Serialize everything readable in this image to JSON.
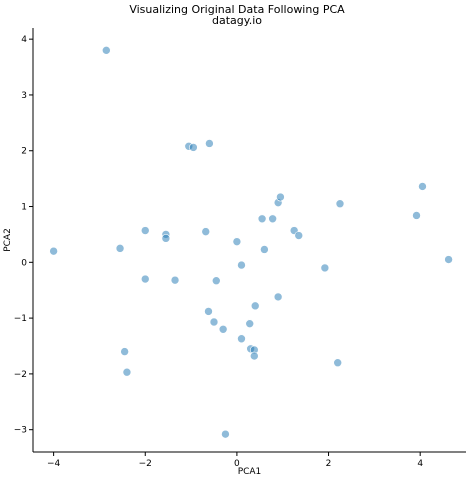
{
  "chart_data": {
    "type": "scatter",
    "title": "Visualizing Original Data Following PCA",
    "subtitle": "datagy.io",
    "xlabel": "PCA1",
    "ylabel": "PCA2",
    "xlim": [
      -4.45,
      5.0
    ],
    "ylim": [
      -3.4,
      4.2
    ],
    "xticks": [
      -4,
      -2,
      0,
      2,
      4
    ],
    "yticks": [
      -3,
      -2,
      -1,
      0,
      1,
      2,
      3,
      4
    ],
    "grid": false,
    "point_color": "#1f77b4",
    "point_alpha": 0.5,
    "x": [
      -2.85,
      -4.0,
      -2.55,
      -2.0,
      -2.0,
      -1.55,
      -1.55,
      -1.35,
      -1.05,
      -0.95,
      -0.6,
      -0.68,
      -0.45,
      -0.62,
      -0.5,
      -0.3,
      0.0,
      0.1,
      0.1,
      -0.25,
      0.28,
      0.3,
      0.38,
      0.38,
      0.4,
      0.55,
      0.6,
      0.78,
      0.9,
      0.95,
      0.9,
      1.25,
      1.35,
      1.92,
      2.2,
      2.25,
      -2.45,
      -2.4,
      3.92,
      4.05,
      4.62
    ],
    "y": [
      3.8,
      0.2,
      0.25,
      0.57,
      -0.3,
      0.5,
      0.43,
      -0.32,
      2.08,
      2.06,
      2.13,
      0.55,
      -0.33,
      -0.88,
      -1.07,
      -1.2,
      0.37,
      -0.05,
      -1.37,
      -3.08,
      -1.1,
      -1.55,
      -1.57,
      -1.68,
      -0.78,
      0.78,
      0.23,
      0.78,
      1.07,
      1.17,
      -0.62,
      0.57,
      0.48,
      -0.1,
      -1.8,
      1.05,
      -1.6,
      -1.97,
      0.84,
      1.36,
      0.05
    ]
  }
}
